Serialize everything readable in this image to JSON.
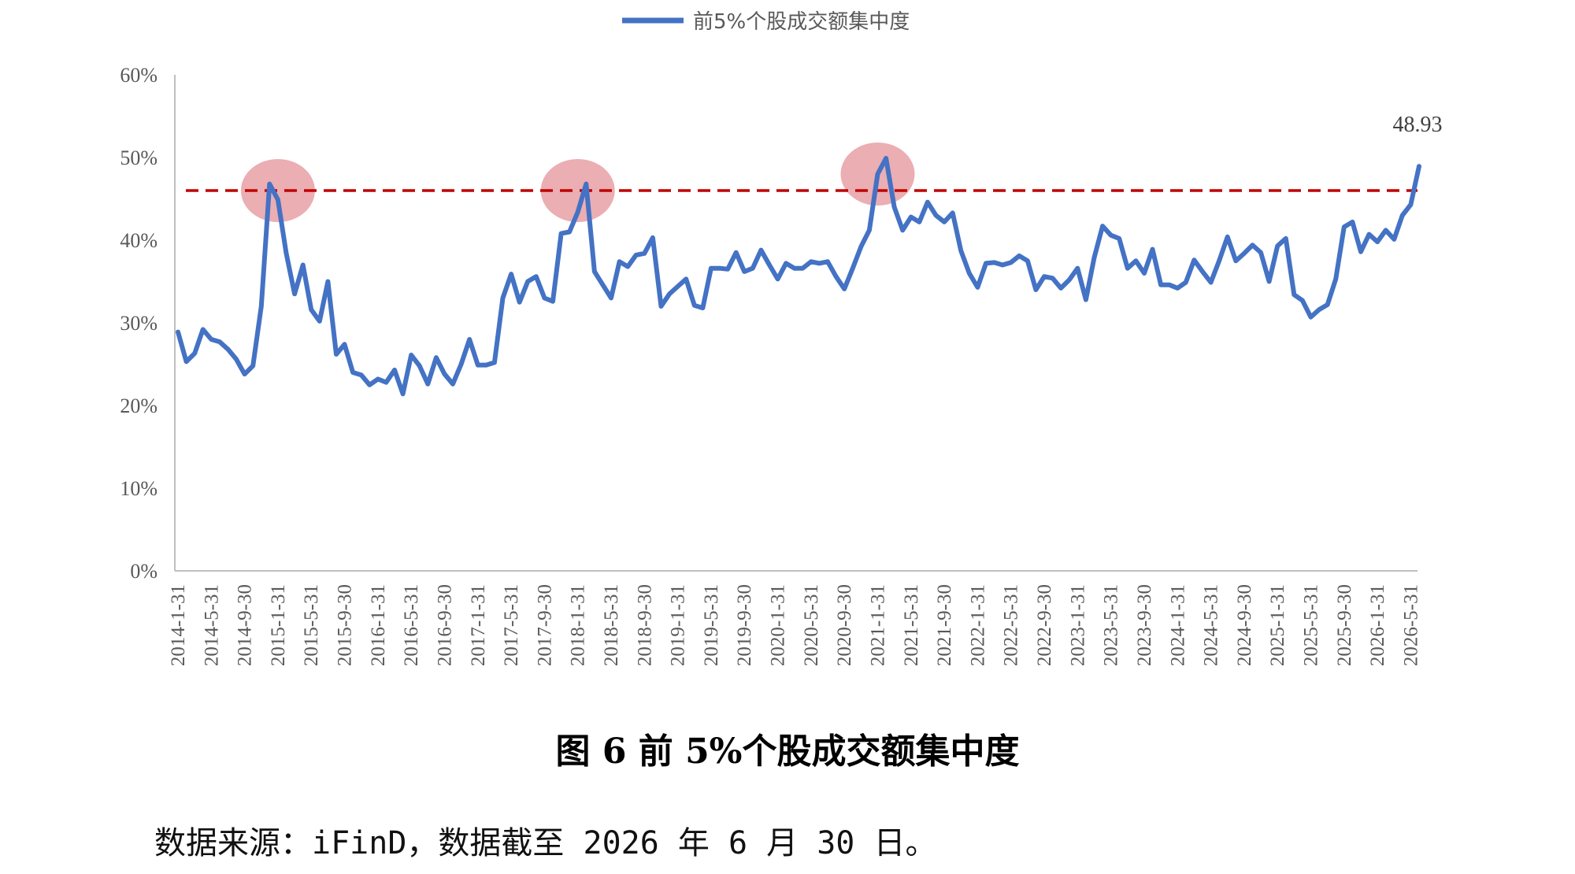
{
  "caption": "图 6  前 5%个股成交额集中度",
  "source_note": "数据来源：iFinD，数据截至 2026 年 6 月 30 日。",
  "chart_data": {
    "type": "line",
    "legend": {
      "position": "top-center",
      "entries": [
        "前5%个股成交额集中度"
      ]
    },
    "series": [
      {
        "name": "前5%个股成交额集中度",
        "color": "#4472C4",
        "values": [
          28.9,
          25.3,
          26.3,
          29.2,
          28.0,
          27.7,
          26.8,
          25.6,
          23.8,
          24.8,
          32.0,
          46.8,
          44.9,
          38.4,
          33.5,
          37.0,
          31.6,
          30.2,
          35.0,
          26.2,
          27.4,
          24.0,
          23.7,
          22.5,
          23.2,
          22.8,
          24.3,
          21.4,
          26.1,
          24.8,
          22.6,
          25.8,
          23.8,
          22.6,
          25.0,
          28.0,
          24.9,
          24.9,
          25.2,
          33.0,
          35.9,
          32.5,
          35.0,
          35.6,
          33.0,
          32.6,
          40.8,
          41.0,
          43.4,
          46.8,
          36.2,
          34.6,
          33.0,
          37.4,
          36.8,
          38.2,
          38.4,
          40.3,
          32.0,
          33.5,
          34.4,
          35.3,
          32.1,
          31.8,
          36.6,
          36.6,
          36.5,
          38.5,
          36.2,
          36.6,
          38.8,
          37.0,
          35.3,
          37.2,
          36.6,
          36.6,
          37.4,
          37.2,
          37.4,
          35.6,
          34.1,
          36.6,
          39.2,
          41.2,
          48.0,
          49.9,
          44.0,
          41.2,
          42.8,
          42.2,
          44.6,
          43.0,
          42.2,
          43.3,
          38.7,
          36.0,
          34.3,
          37.2,
          37.3,
          37.0,
          37.3,
          38.1,
          37.5,
          34.0,
          35.6,
          35.4,
          34.2,
          35.2,
          36.6,
          32.8,
          37.9,
          41.7,
          40.6,
          40.2,
          36.6,
          37.5,
          36.0,
          38.9,
          34.6,
          34.6,
          34.2,
          34.9,
          37.6,
          36.2,
          34.9,
          37.5,
          40.4,
          37.5,
          38.4,
          39.4,
          38.5,
          35.0,
          39.3,
          40.2,
          33.4,
          32.7,
          30.7,
          31.6,
          32.2,
          35.3,
          41.6,
          42.2,
          38.6,
          40.7,
          39.8,
          41.2,
          40.1,
          43.0,
          44.3,
          48.93
        ]
      }
    ],
    "x_tick_labels": [
      "2014-1-31",
      "2014-5-31",
      "2014-9-30",
      "2015-1-31",
      "2015-5-31",
      "2015-9-30",
      "2016-1-31",
      "2016-5-31",
      "2016-9-30",
      "2017-1-31",
      "2017-5-31",
      "2017-9-30",
      "2018-1-31",
      "2018-5-31",
      "2018-9-30",
      "2019-1-31",
      "2019-5-31",
      "2019-9-30",
      "2020-1-31",
      "2020-5-31",
      "2020-9-30",
      "2021-1-31",
      "2021-5-31",
      "2021-9-30",
      "2022-1-31",
      "2022-5-31",
      "2022-9-30",
      "2023-1-31",
      "2023-5-31",
      "2023-9-30",
      "2024-1-31",
      "2024-5-31",
      "2024-9-30",
      "2025-1-31",
      "2025-5-31",
      "2025-9-30",
      "2026-1-31",
      "2026-5-31"
    ],
    "y_tick_labels": [
      "0%",
      "10%",
      "20%",
      "30%",
      "40%",
      "50%",
      "60%"
    ],
    "ylim": [
      0,
      60
    ],
    "grid": false,
    "reference_line": {
      "value": 46,
      "style": "dashed",
      "color": "#C00000"
    },
    "highlights": [
      {
        "x": "2015-1-31",
        "y": 46,
        "color": "#E8A0A4"
      },
      {
        "x": "2018-1-31",
        "y": 46,
        "color": "#E8A0A4"
      },
      {
        "x": "2021-1-31",
        "y": 48,
        "color": "#E8A0A4"
      }
    ],
    "last_value_label": "48.93"
  }
}
